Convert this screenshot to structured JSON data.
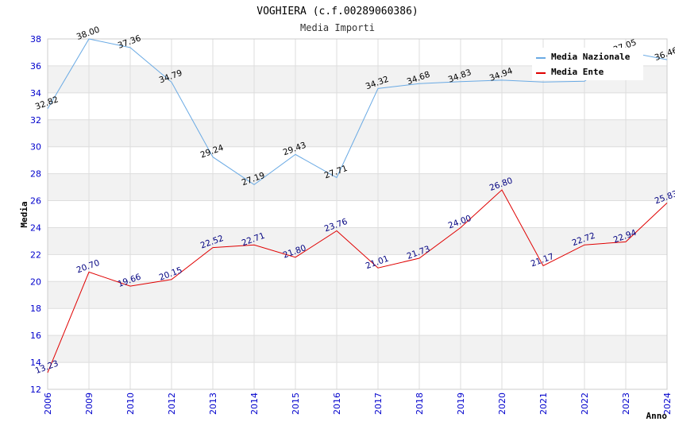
{
  "chart_data": {
    "type": "line",
    "title": "VOGHIERA (c.f.00289060386)",
    "subtitle": "Media Importi",
    "xlabel": "Anno",
    "ylabel": "Media",
    "ylim": [
      12,
      38
    ],
    "yticks": [
      12,
      14,
      16,
      18,
      20,
      22,
      24,
      26,
      28,
      30,
      32,
      34,
      36,
      38
    ],
    "categories": [
      "2006",
      "2009",
      "2010",
      "2012",
      "2013",
      "2014",
      "2015",
      "2016",
      "2017",
      "2018",
      "2019",
      "2020",
      "2021",
      "2022",
      "2023",
      "2024"
    ],
    "series": [
      {
        "name": "Media Nazionale",
        "color": "#6aaae4",
        "values": [
          32.82,
          38.0,
          37.36,
          34.79,
          29.24,
          27.19,
          29.43,
          27.71,
          34.32,
          34.68,
          34.83,
          34.94,
          34.8,
          34.86,
          37.05,
          36.46
        ],
        "labels": [
          "32.82",
          "38.00",
          "37.36",
          "34.79",
          "29.24",
          "27.19",
          "29.43",
          "27.71",
          "34.32",
          "34.68",
          "34.83",
          "34.94",
          "",
          "",
          "37.05",
          "36.46"
        ]
      },
      {
        "name": "Media Ente",
        "color": "#e00000",
        "values": [
          13.23,
          20.7,
          19.66,
          20.15,
          22.52,
          22.71,
          21.8,
          23.76,
          21.01,
          21.73,
          24.0,
          26.8,
          21.17,
          22.72,
          22.94,
          25.83
        ],
        "labels": [
          "13.23",
          "20.70",
          "19.66",
          "20.15",
          "22.52",
          "22.71",
          "21.80",
          "23.76",
          "21.01",
          "21.73",
          "24.00",
          "26.80",
          "21.17",
          "22.72",
          "22.94",
          "25.83"
        ]
      }
    ],
    "legend_position": "top-right",
    "grid": true
  }
}
